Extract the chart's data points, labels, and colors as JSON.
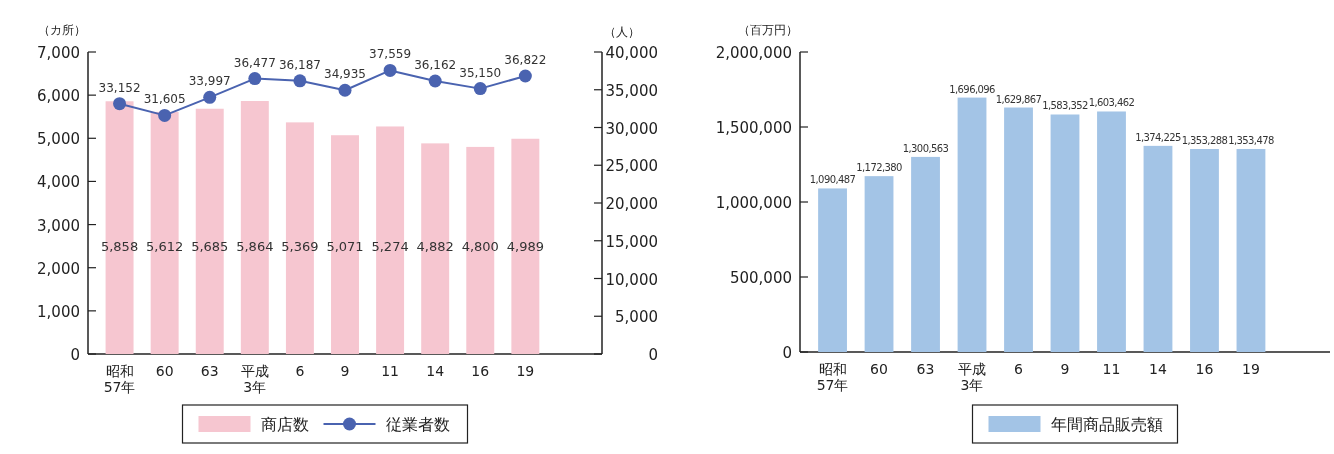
{
  "chart_data": [
    {
      "type": "bar",
      "categories": [
        "昭和\n57年",
        "60",
        "63",
        "平成\n3年",
        "6",
        "9",
        "11",
        "14",
        "16",
        "19"
      ],
      "ylabel": "（カ所）",
      "y2label": "（人）",
      "ylim": [
        0,
        7000
      ],
      "yticks": [
        0,
        {
          "value": 1000,
          "label": "1,000"
        },
        {
          "value": 2000,
          "label": "2,000"
        },
        {
          "value": 3000,
          "label": "3,000"
        },
        {
          "value": 4000,
          "label": "4,000"
        },
        {
          "value": 5000,
          "label": "5,000"
        },
        {
          "value": 6000,
          "label": "6,000"
        },
        {
          "value": 7000,
          "label": "7,000"
        }
      ],
      "y2lim": [
        0,
        40000
      ],
      "y2ticks": [
        0,
        {
          "value": 5000,
          "label": "5,000"
        },
        {
          "value": 10000,
          "label": "10,000"
        },
        {
          "value": 15000,
          "label": "15,000"
        },
        {
          "value": 20000,
          "label": "20,000"
        },
        {
          "value": 25000,
          "label": "25,000"
        },
        {
          "value": 30000,
          "label": "30,000"
        },
        {
          "value": 35000,
          "label": "35,000"
        },
        {
          "value": 40000,
          "label": "40,000"
        }
      ],
      "legend": "bottom",
      "series": [
        {
          "name": "商店数",
          "color": "#f6c6d0",
          "values": [
            5858,
            5612,
            5685,
            5864,
            5369,
            5071,
            5274,
            4882,
            4800,
            4989
          ],
          "value_labels": [
            "5,858",
            "5,612",
            "5,685",
            "5,864",
            "5,369",
            "5,071",
            "5,274",
            "4,882",
            "4,800",
            "4,989"
          ]
        },
        {
          "name": "従業者数",
          "type": "line",
          "axis": "y2",
          "color": "#4a63b0",
          "marker": "circle",
          "values": [
            33152,
            31605,
            33997,
            36477,
            36187,
            34935,
            37559,
            36162,
            35150,
            36822
          ],
          "value_labels": [
            "33,152",
            "31,605",
            "33,997",
            "36,477",
            "36,187",
            "34,935",
            "37,559",
            "36,162",
            "35,150",
            "36,822"
          ]
        }
      ]
    },
    {
      "type": "bar",
      "categories": [
        "昭和\n57年",
        "60",
        "63",
        "平成\n3年",
        "6",
        "9",
        "11",
        "14",
        "16",
        "19"
      ],
      "ylabel": "（百万円）",
      "ylim": [
        0,
        2000000
      ],
      "yticks": [
        0,
        {
          "value": 500000,
          "label": "500,000"
        },
        {
          "value": 1000000,
          "label": "1,000,000"
        },
        {
          "value": 1500000,
          "label": "1,500,000"
        },
        {
          "value": 2000000,
          "label": "2,000,000"
        }
      ],
      "legend": "bottom",
      "series": [
        {
          "name": "年間商品販売額",
          "color": "#a3c4e6",
          "values": [
            1090487,
            1172380,
            1300563,
            1696096,
            1629867,
            1583352,
            1603462,
            1374225,
            1353288,
            1353478
          ],
          "value_labels": [
            "1,090,487",
            "1,172,380",
            "1,300,563",
            "1,696,096",
            "1,629,867",
            "1,583,352",
            "1,603,462",
            "1,374,225",
            "1,353,288",
            "1,353,478"
          ]
        }
      ]
    }
  ]
}
